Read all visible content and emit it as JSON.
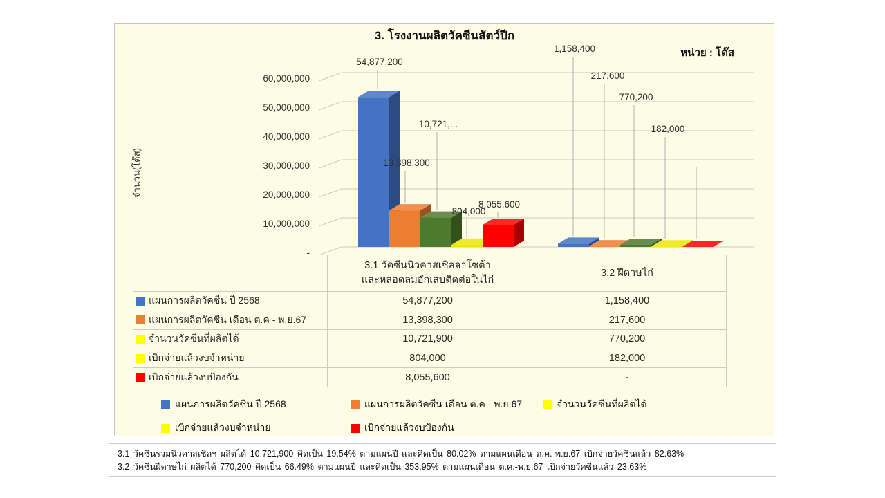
{
  "title": "3. โรงงานผลิตวัคซีนสัตว์ปีก",
  "unit_label": "หน่วย : โด๊ส",
  "y_axis_title": "จำนวน(โด๊ส)",
  "y_tick_labels": [
    "60,000,000",
    "50,000,000",
    "40,000,000",
    "30,000,000",
    "20,000,000",
    "10,000,000",
    "-"
  ],
  "chart_data": {
    "type": "bar",
    "style": "3d-column",
    "title": "3. โรงงานผลิตวัคซีนสัตว์ปีก",
    "unit": "โด๊ส",
    "ylabel": "จำนวน(โด๊ส)",
    "ylim": [
      0,
      60000000
    ],
    "ytick_interval": 10000000,
    "grid": true,
    "legend_position": "bottom",
    "categories": [
      "3.1 วัคซีนนิวคาสเซิลลาโซต้า และหลอดลมอักเสบติดต่อในไก่",
      "3.2 ฝีดาษไก่"
    ],
    "series": [
      {
        "name": "แผนการผลิตวัคซีน ปี 2568",
        "bar_color": "#4472C4",
        "key_color": "#4472C4",
        "values": [
          54877200,
          1158400
        ],
        "value_labels": [
          "54,877,200",
          "1,158,400"
        ]
      },
      {
        "name": "แผนการผลิตวัคซีน เดือน ต.ค - พ.ย.67",
        "bar_color": "#ED7D31",
        "key_color": "#ED7D31",
        "values": [
          13398300,
          217600
        ],
        "value_labels": [
          "13,398,300",
          "217,600"
        ]
      },
      {
        "name": "จำนวนวัคซีนที่ผลิตได้",
        "bar_color": "#4E7A2D",
        "key_color": "#FFFF00",
        "values": [
          10721900,
          770200
        ],
        "value_labels": [
          "10,721,...",
          "770,200"
        ]
      },
      {
        "name": "เบิกจ่ายแล้วงบจำหน่าย",
        "bar_color": "#EDE800",
        "key_color": "#FFFF00",
        "values": [
          804000,
          182000
        ],
        "value_labels": [
          "804,000",
          "182,000"
        ]
      },
      {
        "name": "เบิกจ่ายแล้วงบป้องกัน",
        "bar_color": "#FE0000",
        "key_color": "#FF0000",
        "values": [
          8055600,
          null
        ],
        "value_labels": [
          "8,055,600",
          "-"
        ]
      }
    ]
  },
  "data_table": {
    "column_headers": [
      [
        "3.1 วัคซีนนิวคาสเซิลลาโซต้า",
        "และหลอดลมอักเสบติดต่อในไก่"
      ],
      [
        "3.2 ฝีดาษไก่"
      ]
    ],
    "rows": [
      {
        "label": "แผนการผลิตวัคซีน ปี 2568",
        "key_color": "#4472C4",
        "values": [
          "54,877,200",
          "1,158,400"
        ]
      },
      {
        "label": "แผนการผลิตวัคซีน เดือน ต.ค - พ.ย.67",
        "key_color": "#ED7D31",
        "values": [
          "13,398,300",
          "217,600"
        ]
      },
      {
        "label": "จำนวนวัคซีนที่ผลิตได้",
        "key_color": "#FFFF00",
        "values": [
          "10,721,900",
          "770,200"
        ]
      },
      {
        "label": "เบิกจ่ายแล้วงบจำหน่าย",
        "key_color": "#FFFF00",
        "values": [
          "804,000",
          "182,000"
        ]
      },
      {
        "label": "เบิกจ่ายแล้วงบป้องกัน",
        "key_color": "#FF0000",
        "values": [
          "8,055,600",
          "-"
        ]
      }
    ]
  },
  "legend": {
    "rows": [
      [
        {
          "label": "แผนการผลิตวัคซีน ปี 2568",
          "color": "#4472C4"
        },
        {
          "label": "แผนการผลิตวัคซีน เดือน ต.ค - พ.ย.67",
          "color": "#ED7D31"
        },
        {
          "label": "จำนวนวัคซีนที่ผลิตได้",
          "color": "#FFFF00"
        }
      ],
      [
        {
          "label": "เบิกจ่ายแล้วงบจำหน่าย",
          "color": "#FFFF00"
        },
        {
          "label": "เบิกจ่ายแล้วงบป้องกัน",
          "color": "#FF0000"
        }
      ]
    ]
  },
  "footnotes": [
    "3.1 วัคซีนรวมนิวคาสเซิลฯ  ผลิตได้  10,721,900  คิดเป็น  19.54%  ตามแผนปี  และคิดเป็น  80.02%  ตามแผนเดือน  ต.ค.-พ.ย.67   เบิกจ่ายวัคซีนแล้ว   82.63%",
    "3.2 วัคซีนฝีดาษไก่  ผลิตได้  770,200  คิดเป็น  66.49%  ตามแผนปี  และคิดเป็น  353.95%  ตามแผนเดือน  ต.ค.-พ.ย.67  เบิกจ่ายวัคซีนแล้ว   23.63%"
  ],
  "colors": {
    "panel_bg": "#FDFDE6",
    "grid": "#C9C9C9",
    "leader": "#AEAEAE",
    "border": "#C5C5C5"
  }
}
